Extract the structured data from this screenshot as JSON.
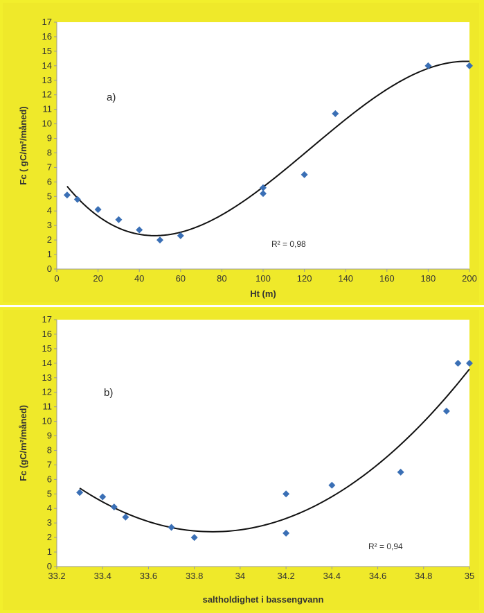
{
  "chart_data": [
    {
      "type": "scatter",
      "panel_label": "a)",
      "xlabel": "Ht (m)",
      "ylabel": "Fc ( gC/m²/måned)",
      "xlim": [
        0,
        200
      ],
      "ylim": [
        0,
        17
      ],
      "xticks": [
        "0",
        "20",
        "40",
        "60",
        "80",
        "100",
        "120",
        "140",
        "160",
        "180",
        "200"
      ],
      "yticks": [
        "0",
        "1",
        "2",
        "3",
        "4",
        "5",
        "6",
        "7",
        "8",
        "9",
        "10",
        "11",
        "12",
        "13",
        "14",
        "15",
        "16",
        "17"
      ],
      "r2_label": "R² = 0,98",
      "point_color": "#3a6fb5",
      "points": [
        [
          5,
          5.1
        ],
        [
          10,
          4.8
        ],
        [
          20,
          4.1
        ],
        [
          30,
          3.4
        ],
        [
          40,
          2.7
        ],
        [
          50,
          2.0
        ],
        [
          60,
          2.3
        ],
        [
          100,
          5.2
        ],
        [
          100,
          5.6
        ],
        [
          120,
          6.5
        ],
        [
          135,
          10.7
        ],
        [
          180,
          14.0
        ],
        [
          200,
          14.0
        ]
      ],
      "trendline": {
        "type": "polynomial",
        "degree": 3,
        "range": [
          5,
          200
        ],
        "fit_points": [
          [
            5,
            5.7
          ],
          [
            48,
            2.3
          ],
          [
            150,
            11.4
          ],
          [
            200,
            14.3
          ]
        ]
      }
    },
    {
      "type": "scatter",
      "panel_label": "b)",
      "xlabel": "saltholdighet i bassengvann",
      "ylabel": "Fc (gC/m²/måned)",
      "xlim": [
        33.2,
        35
      ],
      "ylim": [
        0,
        17
      ],
      "xticks": [
        "33.2",
        "33.4",
        "33.6",
        "33.8",
        "34",
        "34.2",
        "34.4",
        "34.6",
        "34.8",
        "35"
      ],
      "yticks": [
        "0",
        "1",
        "2",
        "3",
        "4",
        "5",
        "6",
        "7",
        "8",
        "9",
        "10",
        "11",
        "12",
        "13",
        "14",
        "15",
        "16",
        "17"
      ],
      "r2_label": "R² = 0,94",
      "point_color": "#3a6fb5",
      "points": [
        [
          33.3,
          5.1
        ],
        [
          33.4,
          4.8
        ],
        [
          33.45,
          4.1
        ],
        [
          33.5,
          3.4
        ],
        [
          33.7,
          2.7
        ],
        [
          33.8,
          2.0
        ],
        [
          34.2,
          5.0
        ],
        [
          34.2,
          2.3
        ],
        [
          34.4,
          5.6
        ],
        [
          34.7,
          6.5
        ],
        [
          34.9,
          10.7
        ],
        [
          34.95,
          14.0
        ],
        [
          35.0,
          14.0
        ]
      ],
      "trendline": {
        "type": "polynomial",
        "degree": 2,
        "range": [
          33.3,
          35
        ],
        "fit_points": [
          [
            33.3,
            5.4
          ],
          [
            33.9,
            2.4
          ],
          [
            35.0,
            13.6
          ]
        ]
      }
    }
  ]
}
